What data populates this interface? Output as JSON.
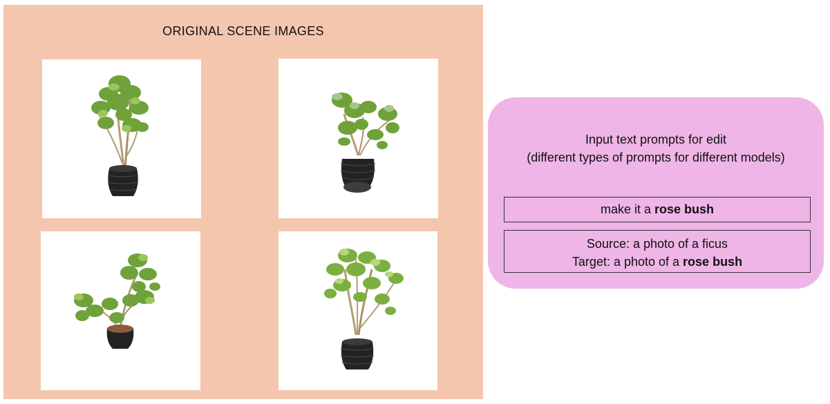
{
  "scene": {
    "title": "ORIGINAL SCENE IMAGES",
    "images": [
      {
        "subject": "potted-plant-upright"
      },
      {
        "subject": "potted-plant-tilted-back"
      },
      {
        "subject": "potted-plant-leaning"
      },
      {
        "subject": "potted-plant-tall"
      }
    ]
  },
  "prompts": {
    "heading_line1": "Input text prompts for edit",
    "heading_line2": "(different types of prompts for different models)",
    "instruction": {
      "prefix": "make it a ",
      "bold": "rose bush"
    },
    "source_target": {
      "source": "Source: a photo of a ficus",
      "target_prefix": "Target: a photo of a ",
      "target_bold": "rose bush"
    }
  },
  "colors": {
    "scene_panel": "#f5c6ae",
    "prompt_panel": "#eeb5e6",
    "leaf": "#6fa23a",
    "pot": "#232323"
  }
}
